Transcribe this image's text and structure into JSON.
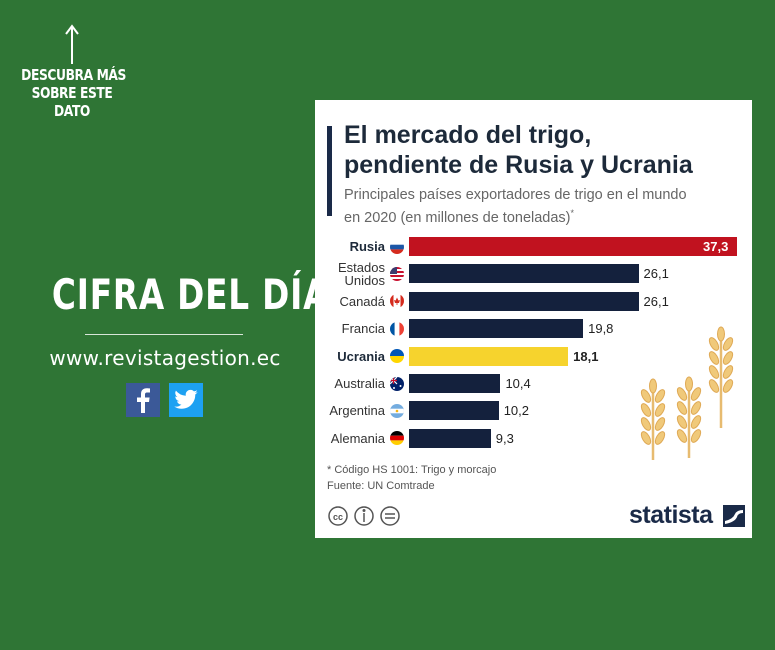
{
  "left": {
    "promo_lines": [
      "DESCUBRA MÁS",
      "SOBRE ESTE",
      "DATO"
    ],
    "headline": "CIFRA DEL DÍA",
    "url": "www.revistagestion.ec",
    "social": [
      "facebook-icon",
      "twitter-icon"
    ],
    "background_color": "#2f7535"
  },
  "card": {
    "title_lines": [
      "El mercado del trigo,",
      "pendiente de Rusia y Ucrania"
    ],
    "subtitle_lines": [
      "Principales países exportadores de trigo en el mundo",
      "en 2020 (en millones de toneladas)"
    ],
    "subtitle_mark": "*",
    "notes": [
      "* Código HS 1001: Trigo y morcajo",
      "Fuente: UN Comtrade"
    ],
    "brand": "statista"
  },
  "chart_data": {
    "type": "bar",
    "orientation": "horizontal",
    "categories": [
      "Rusia",
      "Estados Unidos",
      "Canadá",
      "Francia",
      "Ucrania",
      "Australia",
      "Argentina",
      "Alemania"
    ],
    "category_label_lines": [
      [
        "Rusia"
      ],
      [
        "Estados",
        "Unidos"
      ],
      [
        "Canadá"
      ],
      [
        "Francia"
      ],
      [
        "Ucrania"
      ],
      [
        "Australia"
      ],
      [
        "Argentina"
      ],
      [
        "Alemania"
      ]
    ],
    "values": [
      37.3,
      26.1,
      26.1,
      19.8,
      18.1,
      10.4,
      10.2,
      9.3
    ],
    "value_labels": [
      "37,3",
      "26,1",
      "26,1",
      "19,8",
      "18,1",
      "10,4",
      "10,2",
      "9,3"
    ],
    "highlighted": [
      "Rusia",
      "Ucrania"
    ],
    "colors": {
      "Rusia": "#c1121f",
      "Ucrania": "#f6d32d",
      "default": "#14213d"
    },
    "xlim": [
      0,
      37.3
    ],
    "grid": false,
    "legend": "none"
  }
}
